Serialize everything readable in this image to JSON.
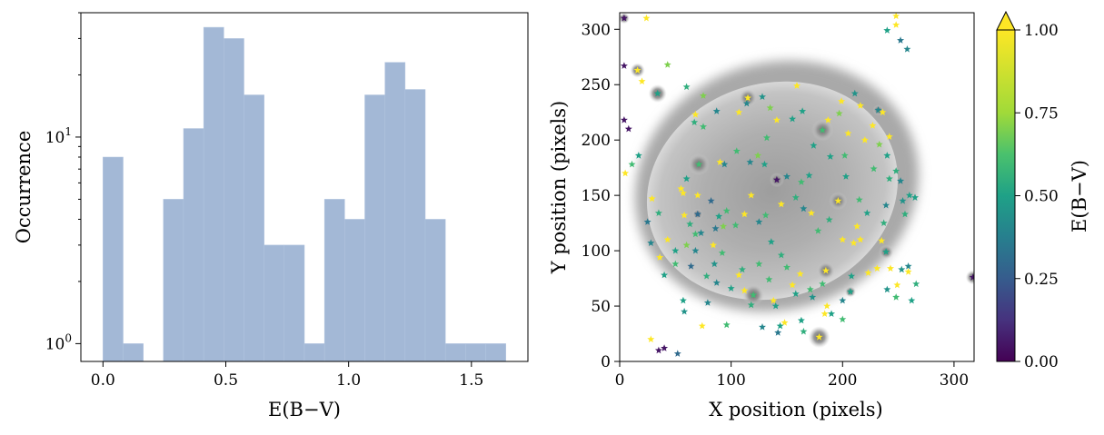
{
  "chart_data": [
    {
      "type": "bar",
      "subtype": "histogram",
      "xlabel": "E(B−V)",
      "ylabel": "Occurrence",
      "yscale": "log",
      "xlim": [
        -0.09,
        1.73
      ],
      "ylim": [
        0.82,
        40
      ],
      "xticks": [
        "0.0",
        "0.5",
        "1.0",
        "1.5"
      ],
      "yticks": [
        {
          "base": "10",
          "exp": "0",
          "value": 1
        },
        {
          "base": "10",
          "exp": "1",
          "value": 10
        }
      ],
      "bin_width": 0.082,
      "bins": [
        {
          "x0": 0.0,
          "value": 8
        },
        {
          "x0": 0.082,
          "value": 1
        },
        {
          "x0": 0.164,
          "value": 0
        },
        {
          "x0": 0.246,
          "value": 5
        },
        {
          "x0": 0.328,
          "value": 11
        },
        {
          "x0": 0.41,
          "value": 34
        },
        {
          "x0": 0.492,
          "value": 30
        },
        {
          "x0": 0.574,
          "value": 16
        },
        {
          "x0": 0.656,
          "value": 3
        },
        {
          "x0": 0.738,
          "value": 3
        },
        {
          "x0": 0.82,
          "value": 1
        },
        {
          "x0": 0.902,
          "value": 5
        },
        {
          "x0": 0.984,
          "value": 4
        },
        {
          "x0": 1.066,
          "value": 16
        },
        {
          "x0": 1.148,
          "value": 23
        },
        {
          "x0": 1.23,
          "value": 17
        },
        {
          "x0": 1.312,
          "value": 4
        },
        {
          "x0": 1.394,
          "value": 1
        },
        {
          "x0": 1.476,
          "value": 1
        },
        {
          "x0": 1.558,
          "value": 1
        }
      ],
      "bar_color": "#a3b8d6"
    },
    {
      "type": "scatter",
      "background": "grayscale nebula image with field stars",
      "marker": "star",
      "xlabel": "X position (pixels)",
      "ylabel": "Y position (pixels)",
      "xlim": [
        0,
        318
      ],
      "ylim": [
        0,
        315
      ],
      "xticks": [
        "0",
        "100",
        "200",
        "300"
      ],
      "yticks": [
        "0",
        "50",
        "100",
        "150",
        "200",
        "250",
        "300"
      ],
      "colorbar": {
        "label": "E(B−V)",
        "colormap": "viridis",
        "range": [
          0,
          1
        ],
        "extend": "max",
        "ticks": [
          "0.00",
          "0.25",
          "0.50",
          "0.75",
          "1.00"
        ]
      },
      "points": [
        [
          4,
          310,
          0.05
        ],
        [
          24,
          310,
          1
        ],
        [
          8,
          210,
          0.05
        ],
        [
          5,
          170,
          1
        ],
        [
          4,
          267,
          0.05
        ],
        [
          4,
          218,
          0.05
        ],
        [
          16,
          263,
          1
        ],
        [
          20,
          253,
          1
        ],
        [
          11,
          178,
          0.6
        ],
        [
          17,
          186,
          0.5
        ],
        [
          29,
          147,
          1
        ],
        [
          25,
          126,
          0.35
        ],
        [
          35,
          134,
          0.55
        ],
        [
          43,
          110,
          1
        ],
        [
          28,
          107,
          0.4
        ],
        [
          36,
          94,
          1
        ],
        [
          50,
          100,
          0.5
        ],
        [
          60,
          105,
          0.7
        ],
        [
          68,
          100,
          0.4
        ],
        [
          84,
          105,
          1
        ],
        [
          92,
          98,
          0.6
        ],
        [
          58,
          45,
          0.45
        ],
        [
          57,
          55,
          0.5
        ],
        [
          79,
          53,
          0.4
        ],
        [
          96,
          33,
          0.6
        ],
        [
          74,
          32,
          1
        ],
        [
          28,
          20,
          1
        ],
        [
          35,
          10,
          0.05
        ],
        [
          40,
          12,
          0.05
        ],
        [
          52,
          7,
          0.3
        ],
        [
          34,
          242,
          0.5
        ],
        [
          43,
          268,
          0.7
        ],
        [
          60,
          248,
          0.55
        ],
        [
          68,
          223,
          1
        ],
        [
          75,
          240,
          0.7
        ],
        [
          67,
          216,
          0.55
        ],
        [
          87,
          226,
          0.4
        ],
        [
          71,
          178,
          0.6
        ],
        [
          75,
          212,
          0.6
        ],
        [
          90,
          180,
          1
        ],
        [
          94,
          178,
          0.4
        ],
        [
          105,
          190,
          0.6
        ],
        [
          60,
          165,
          0.5
        ],
        [
          55,
          156,
          1
        ],
        [
          57,
          152,
          1
        ],
        [
          70,
          150,
          1
        ],
        [
          82,
          145,
          0.3
        ],
        [
          58,
          132,
          1
        ],
        [
          63,
          124,
          0.55
        ],
        [
          70,
          133,
          0.3
        ],
        [
          73,
          116,
          0.4
        ],
        [
          89,
          131,
          0.5
        ],
        [
          93,
          122,
          0.7
        ],
        [
          96,
          136,
          0.6
        ],
        [
          86,
          120,
          0.35
        ],
        [
          104,
          123,
          0.6
        ],
        [
          112,
          133,
          1
        ],
        [
          118,
          150,
          1
        ],
        [
          125,
          126,
          0.4
        ],
        [
          131,
          132,
          0.6
        ],
        [
          141,
          164,
          0.05
        ],
        [
          145,
          142,
          1
        ],
        [
          158,
          148,
          0.55
        ],
        [
          165,
          138,
          0.4
        ],
        [
          172,
          134,
          1
        ],
        [
          178,
          118,
          0.6
        ],
        [
          188,
          128,
          0.55
        ],
        [
          150,
          167,
          0.4
        ],
        [
          163,
          162,
          0.6
        ],
        [
          170,
          168,
          0.5
        ],
        [
          130,
          178,
          0.5
        ],
        [
          117,
          180,
          0.4
        ],
        [
          124,
          186,
          0.7
        ],
        [
          132,
          202,
          0.6
        ],
        [
          141,
          218,
          1
        ],
        [
          115,
          238,
          1
        ],
        [
          107,
          225,
          1
        ],
        [
          114,
          233,
          0.4
        ],
        [
          128,
          239,
          0.45
        ],
        [
          135,
          229,
          0.7
        ],
        [
          155,
          219,
          0.5
        ],
        [
          164,
          226,
          0.5
        ],
        [
          159,
          249,
          1
        ],
        [
          174,
          195,
          0.5
        ],
        [
          182,
          209,
          0.6
        ],
        [
          187,
          218,
          1
        ],
        [
          189,
          185,
          0.5
        ],
        [
          202,
          186,
          0.6
        ],
        [
          203,
          167,
          0.5
        ],
        [
          199,
          235,
          1
        ],
        [
          211,
          242,
          0.45
        ],
        [
          216,
          231,
          1
        ],
        [
          197,
          224,
          0.7
        ],
        [
          205,
          206,
          1
        ],
        [
          220,
          200,
          1
        ],
        [
          227,
          213,
          1
        ],
        [
          232,
          227,
          0.4
        ],
        [
          236,
          225,
          1
        ],
        [
          242,
          203,
          1
        ],
        [
          233,
          196,
          0.7
        ],
        [
          240,
          186,
          0.5
        ],
        [
          228,
          174,
          0.6
        ],
        [
          242,
          165,
          0.55
        ],
        [
          248,
          172,
          0.55
        ],
        [
          252,
          163,
          0.4
        ],
        [
          254,
          145,
          0.45
        ],
        [
          260,
          150,
          0.5
        ],
        [
          265,
          148,
          0.5
        ],
        [
          256,
          133,
          0.55
        ],
        [
          239,
          141,
          0.4
        ],
        [
          237,
          125,
          0.55
        ],
        [
          213,
          122,
          1
        ],
        [
          210,
          107,
          1
        ],
        [
          200,
          110,
          1
        ],
        [
          216,
          110,
          1
        ],
        [
          235,
          109,
          1
        ],
        [
          239,
          99,
          0.5
        ],
        [
          231,
          84,
          1
        ],
        [
          223,
          80,
          1
        ],
        [
          243,
          84,
          1
        ],
        [
          253,
          83,
          0.45
        ],
        [
          259,
          81,
          1
        ],
        [
          249,
          69,
          1
        ],
        [
          248,
          58,
          0.6
        ],
        [
          240,
          65,
          0.45
        ],
        [
          262,
          55,
          0.5
        ],
        [
          266,
          70,
          0.55
        ],
        [
          208,
          77,
          0.5
        ],
        [
          185,
          82,
          1
        ],
        [
          182,
          70,
          0.6
        ],
        [
          171,
          65,
          0.6
        ],
        [
          158,
          61,
          0.5
        ],
        [
          155,
          69,
          1
        ],
        [
          162,
          79,
          1
        ],
        [
          134,
          74,
          0.6
        ],
        [
          138,
          55,
          1
        ],
        [
          140,
          50,
          0.5
        ],
        [
          125,
          88,
          0.6
        ],
        [
          107,
          78,
          1
        ],
        [
          112,
          64,
          1
        ],
        [
          110,
          83,
          0.55
        ],
        [
          100,
          66,
          0.5
        ],
        [
          87,
          71,
          0.4
        ],
        [
          120,
          60,
          0.6
        ],
        [
          118,
          51,
          0.55
        ],
        [
          148,
          35,
          1
        ],
        [
          144,
          32,
          0.5
        ],
        [
          142,
          26,
          0.35
        ],
        [
          128,
          31,
          0.4
        ],
        [
          184,
          43,
          1
        ],
        [
          190,
          43,
          0.5
        ],
        [
          200,
          55,
          0.4
        ],
        [
          207,
          63,
          0.5
        ],
        [
          165,
          27,
          0.55
        ],
        [
          248,
          304,
          1
        ],
        [
          248,
          312,
          1
        ],
        [
          252,
          290,
          0.35
        ],
        [
          258,
          282,
          0.4
        ],
        [
          240,
          299,
          0.5
        ],
        [
          259,
          86,
          0.4
        ],
        [
          317,
          76,
          0.05
        ],
        [
          163,
          37,
          0.5
        ],
        [
          173,
          58,
          0.45
        ],
        [
          150,
          85,
          0.6
        ],
        [
          215,
          146,
          0.6
        ],
        [
          222,
          134,
          0.5
        ],
        [
          196,
          145,
          1
        ],
        [
          136,
          108,
          0.5
        ],
        [
          145,
          96,
          0.55
        ],
        [
          186,
          50,
          1
        ],
        [
          200,
          38,
          0.6
        ],
        [
          179,
          22,
          1
        ],
        [
          78,
          77,
          0.55
        ],
        [
          85,
          88,
          0.45
        ],
        [
          64,
          86,
          0.3
        ],
        [
          50,
          88,
          0.6
        ],
        [
          40,
          78,
          0.5
        ],
        [
          68,
          115,
          0.6
        ]
      ]
    }
  ]
}
